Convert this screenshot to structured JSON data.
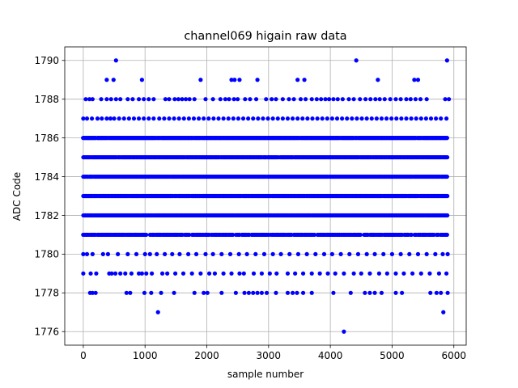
{
  "chart_data": {
    "type": "scatter",
    "title": "channel069 higain raw data",
    "xlabel": "sample number",
    "ylabel": "ADC Code",
    "xlim": [
      -300,
      6200
    ],
    "ylim": [
      1775.3,
      1790.7
    ],
    "xticks": [
      0,
      1000,
      2000,
      3000,
      4000,
      5000,
      6000
    ],
    "yticks": [
      1776,
      1778,
      1780,
      1782,
      1784,
      1786,
      1788,
      1790
    ],
    "grid": true,
    "marker_color": "#0000ff",
    "series": [
      {
        "n_samples": 5900,
        "dense_levels": [
          1781,
          1782,
          1783,
          1784,
          1785,
          1786
        ],
        "dense_x_range": [
          0,
          5900
        ],
        "sparse_points": [
          {
            "level": 1780,
            "x": [
              0,
              60,
              150,
              320,
              400,
              560,
              720,
              860,
              1000,
              1080,
              1190,
              1320,
              1440,
              1560,
              1700,
              1830,
              1980,
              2100,
              2240,
              2380,
              2520,
              2650,
              2790,
              2930,
              3070,
              3200,
              3340,
              3480,
              3620,
              3760,
              3900,
              4030,
              4170,
              4310,
              4450,
              4590,
              4720,
              4860,
              5000,
              5140,
              5280,
              5420,
              5560,
              5700,
              5820,
              5900
            ]
          },
          {
            "level": 1779,
            "x": [
              0,
              120,
              210,
              420,
              460,
              520,
              600,
              680,
              780,
              900,
              950,
              1020,
              1110,
              1280,
              1360,
              1490,
              1620,
              1760,
              1900,
              2040,
              2130,
              2270,
              2400,
              2530,
              2600,
              2760,
              2890,
              3020,
              3130,
              3310,
              3430,
              3560,
              3700,
              3830,
              3960,
              4080,
              4220,
              4380,
              4500,
              4640,
              4790,
              4920,
              5060,
              5190,
              5330,
              5470,
              5610,
              5760,
              5880
            ]
          },
          {
            "level": 1778,
            "x": [
              110,
              150,
              200,
              700,
              760,
              990,
              1100,
              1260,
              1470,
              1800,
              1950,
              2010,
              2240,
              2470,
              2610,
              2680,
              2750,
              2820,
              2890,
              2970,
              3120,
              3310,
              3390,
              3460,
              3560,
              3700,
              4050,
              4330,
              4560,
              4640,
              4720,
              4830,
              5060,
              5160,
              5620,
              5720,
              5790,
              5900
            ]
          },
          {
            "level": 1777,
            "x": [
              1210,
              5830
            ]
          },
          {
            "level": 1776,
            "x": [
              4220
            ]
          },
          {
            "level": 1787,
            "x": [
              0,
              60,
              140,
              230,
              300,
              380,
              440,
              500,
              580,
              660,
              740,
              820,
              900,
              980,
              1060,
              1140,
              1230,
              1310,
              1390,
              1470,
              1550,
              1630,
              1710,
              1790,
              1870,
              1950,
              2030,
              2110,
              2190,
              2270,
              2350,
              2430,
              2510,
              2590,
              2670,
              2750,
              2830,
              2910,
              2990,
              3070,
              3150,
              3230,
              3310,
              3390,
              3470,
              3550,
              3630,
              3710,
              3790,
              3870,
              3950,
              4030,
              4110,
              4190,
              4270,
              4350,
              4430,
              4510,
              4590,
              4670,
              4750,
              4830,
              4910,
              4990,
              5070,
              5150,
              5230,
              5310,
              5390,
              5470,
              5550,
              5630,
              5710,
              5790,
              5880
            ]
          },
          {
            "level": 1788,
            "x": [
              40,
              100,
              150,
              290,
              380,
              450,
              530,
              600,
              720,
              800,
              900,
              980,
              1060,
              1140,
              1330,
              1390,
              1480,
              1540,
              1600,
              1660,
              1720,
              1800,
              1980,
              2100,
              2220,
              2300,
              2360,
              2440,
              2500,
              2620,
              2700,
              2800,
              2960,
              3050,
              3120,
              3230,
              3330,
              3410,
              3520,
              3600,
              3700,
              3780,
              3850,
              3920,
              3980,
              4050,
              4120,
              4200,
              4300,
              4380,
              4480,
              4570,
              4650,
              4730,
              4800,
              4880,
              4970,
              5060,
              5140,
              5230,
              5300,
              5380,
              5460,
              5560,
              5860,
              5920
            ]
          },
          {
            "level": 1789,
            "x": [
              380,
              490,
              950,
              1900,
              2400,
              2450,
              2530,
              2820,
              3470,
              3580,
              4770,
              5360,
              5420
            ]
          },
          {
            "level": 1790,
            "x": [
              530,
              4420,
              5890
            ]
          }
        ]
      }
    ]
  }
}
